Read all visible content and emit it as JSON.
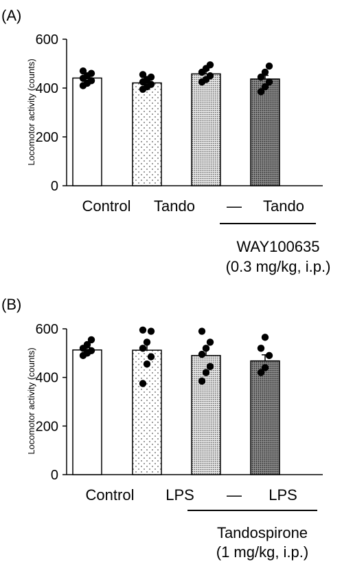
{
  "chart_data": [
    {
      "type": "bar",
      "panel_label": "(A)",
      "categories": [
        "Control",
        "Tando",
        "—",
        "Tando"
      ],
      "values": [
        441,
        421,
        458,
        437
      ],
      "errors": [
        10,
        10,
        15,
        15
      ],
      "points": [
        [
          410,
          420,
          430,
          440,
          450,
          460,
          470
        ],
        [
          395,
          405,
          415,
          425,
          435,
          445,
          455
        ],
        [
          425,
          435,
          450,
          465,
          480,
          495
        ],
        [
          385,
          405,
          425,
          445,
          465,
          490
        ]
      ],
      "fills": [
        "white",
        "sparse-dots",
        "dense-dots",
        "dark-dots"
      ],
      "ylabel": "Locomotor activity (counts)",
      "ylim": [
        0,
        600
      ],
      "yticks": [
        0,
        200,
        400,
        600
      ],
      "bracket": {
        "line1": "WAY100635",
        "line2": "(0.3 mg/kg, i.p.)",
        "spans": [
          2,
          3
        ]
      }
    },
    {
      "type": "bar",
      "panel_label": "(B)",
      "categories": [
        "Control",
        "LPS",
        "—",
        "LPS"
      ],
      "values": [
        513,
        512,
        490,
        468
      ],
      "errors": [
        10,
        30,
        25,
        25
      ],
      "points": [
        [
          490,
          500,
          510,
          520,
          535,
          555
        ],
        [
          375,
          455,
          485,
          520,
          545,
          590,
          595
        ],
        [
          385,
          420,
          445,
          495,
          520,
          545,
          590
        ],
        [
          420,
          440,
          490,
          520,
          565
        ]
      ],
      "fills": [
        "white",
        "sparse-dots",
        "dense-dots",
        "dark-dots"
      ],
      "ylabel": "Locomotor activity (counts)",
      "ylim": [
        0,
        600
      ],
      "yticks": [
        0,
        200,
        400,
        600
      ],
      "bracket": {
        "line1": "Tandospirone",
        "line2": "(1 mg/kg, i.p.)",
        "spans": [
          2,
          3
        ]
      }
    }
  ]
}
